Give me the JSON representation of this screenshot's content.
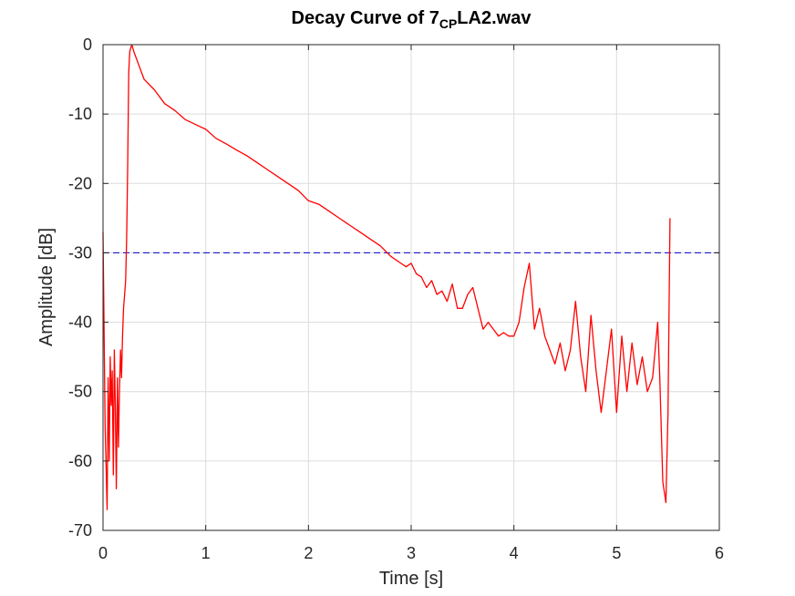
{
  "chart_data": {
    "type": "line",
    "title": {
      "prefix": "Decay Curve of 7",
      "subscript": "CP",
      "suffix": "LA2.wav"
    },
    "xlabel": "Time [s]",
    "ylabel": "Amplitude [dB]",
    "xlim": [
      0,
      6
    ],
    "ylim": [
      -70,
      0
    ],
    "xticks": [
      0,
      1,
      2,
      3,
      4,
      5,
      6
    ],
    "yticks": [
      0,
      -10,
      -20,
      -30,
      -40,
      -50,
      -60,
      -70
    ],
    "xtick_labels": [
      "0",
      "1",
      "2",
      "3",
      "4",
      "5",
      "6"
    ],
    "ytick_labels": [
      "0",
      "-10",
      "-20",
      "-30",
      "-40",
      "-50",
      "-60",
      "-70"
    ],
    "grid": true,
    "reference_line": {
      "y": -30,
      "style": "dashed",
      "color": "#0000cc"
    },
    "series": [
      {
        "color": "#ff0000",
        "x": [
          0.0,
          0.02,
          0.04,
          0.05,
          0.06,
          0.07,
          0.08,
          0.09,
          0.1,
          0.11,
          0.12,
          0.13,
          0.14,
          0.15,
          0.16,
          0.17,
          0.18,
          0.19,
          0.2,
          0.21,
          0.22,
          0.23,
          0.24,
          0.25,
          0.26,
          0.27,
          0.28,
          0.3,
          0.35,
          0.4,
          0.5,
          0.6,
          0.7,
          0.8,
          0.9,
          1.0,
          1.1,
          1.2,
          1.3,
          1.4,
          1.5,
          1.6,
          1.7,
          1.8,
          1.9,
          2.0,
          2.1,
          2.2,
          2.3,
          2.4,
          2.5,
          2.6,
          2.7,
          2.8,
          2.9,
          2.95,
          3.0,
          3.05,
          3.1,
          3.15,
          3.2,
          3.25,
          3.3,
          3.35,
          3.4,
          3.45,
          3.5,
          3.55,
          3.6,
          3.65,
          3.7,
          3.75,
          3.8,
          3.85,
          3.9,
          3.95,
          4.0,
          4.05,
          4.1,
          4.15,
          4.2,
          4.25,
          4.3,
          4.35,
          4.4,
          4.45,
          4.5,
          4.55,
          4.6,
          4.65,
          4.7,
          4.75,
          4.8,
          4.85,
          4.9,
          4.95,
          5.0,
          5.05,
          5.1,
          5.15,
          5.2,
          5.25,
          5.3,
          5.35,
          5.4,
          5.42,
          5.45,
          5.48,
          5.5,
          5.52
        ],
        "y": [
          -27,
          -55,
          -67,
          -48,
          -60,
          -45,
          -52,
          -47,
          -62,
          -44,
          -52,
          -64,
          -48,
          -58,
          -50,
          -44,
          -48,
          -42,
          -38,
          -36,
          -34,
          -28,
          -18,
          -4,
          -1,
          -0.5,
          0,
          -1,
          -3,
          -5,
          -6.5,
          -8.5,
          -9.5,
          -10.8,
          -11.5,
          -12.2,
          -13.5,
          -14.3,
          -15.2,
          -16,
          -17,
          -18,
          -19,
          -20,
          -21,
          -22.5,
          -23,
          -24,
          -25,
          -26,
          -27,
          -28,
          -29,
          -30.5,
          -31.5,
          -32,
          -31.5,
          -33,
          -33.5,
          -35,
          -34,
          -36,
          -35.5,
          -37,
          -34.5,
          -38,
          -38,
          -36,
          -35,
          -38,
          -41,
          -40,
          -41,
          -42,
          -41.5,
          -42,
          -42,
          -40,
          -35,
          -31.5,
          -41,
          -38,
          -42,
          -44,
          -46,
          -43,
          -47,
          -44,
          -37,
          -45,
          -50,
          -39,
          -47,
          -53,
          -47,
          -41,
          -53,
          -42,
          -50,
          -43,
          -49,
          -45,
          -50,
          -48,
          -40,
          -48,
          -63,
          -66,
          -53,
          -25
        ]
      }
    ]
  }
}
